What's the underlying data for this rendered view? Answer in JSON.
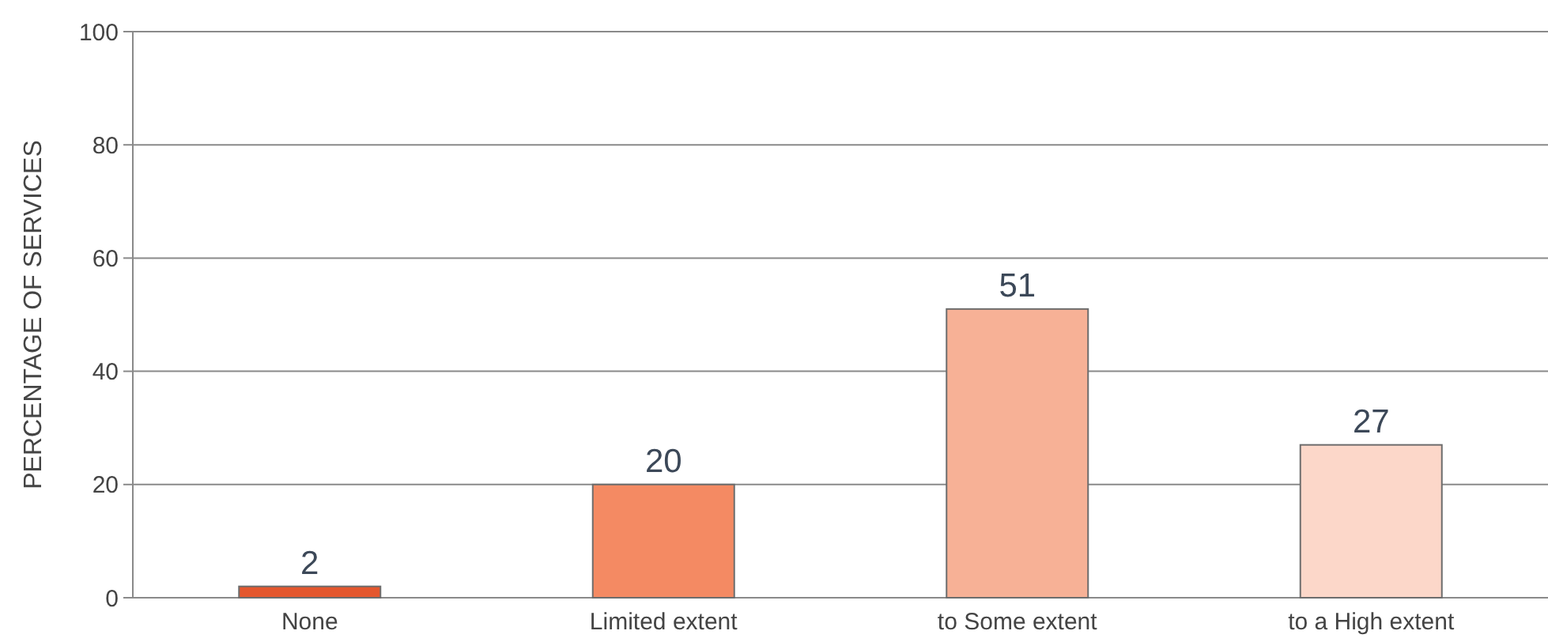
{
  "chart_data": {
    "type": "bar",
    "ylabel": "PERCENTAGE OF  SERVICES",
    "categories": [
      "None",
      "Limited extent",
      "to Some extent",
      "to a High extent"
    ],
    "values": [
      2,
      20,
      51,
      27
    ],
    "colors": [
      "#e4572e",
      "#f48a63",
      "#f7b196",
      "#fcd7c9"
    ],
    "ylim": [
      0,
      100
    ],
    "yticks": [
      0,
      20,
      40,
      60,
      80,
      100
    ],
    "grid": "y",
    "data_labels": true
  }
}
